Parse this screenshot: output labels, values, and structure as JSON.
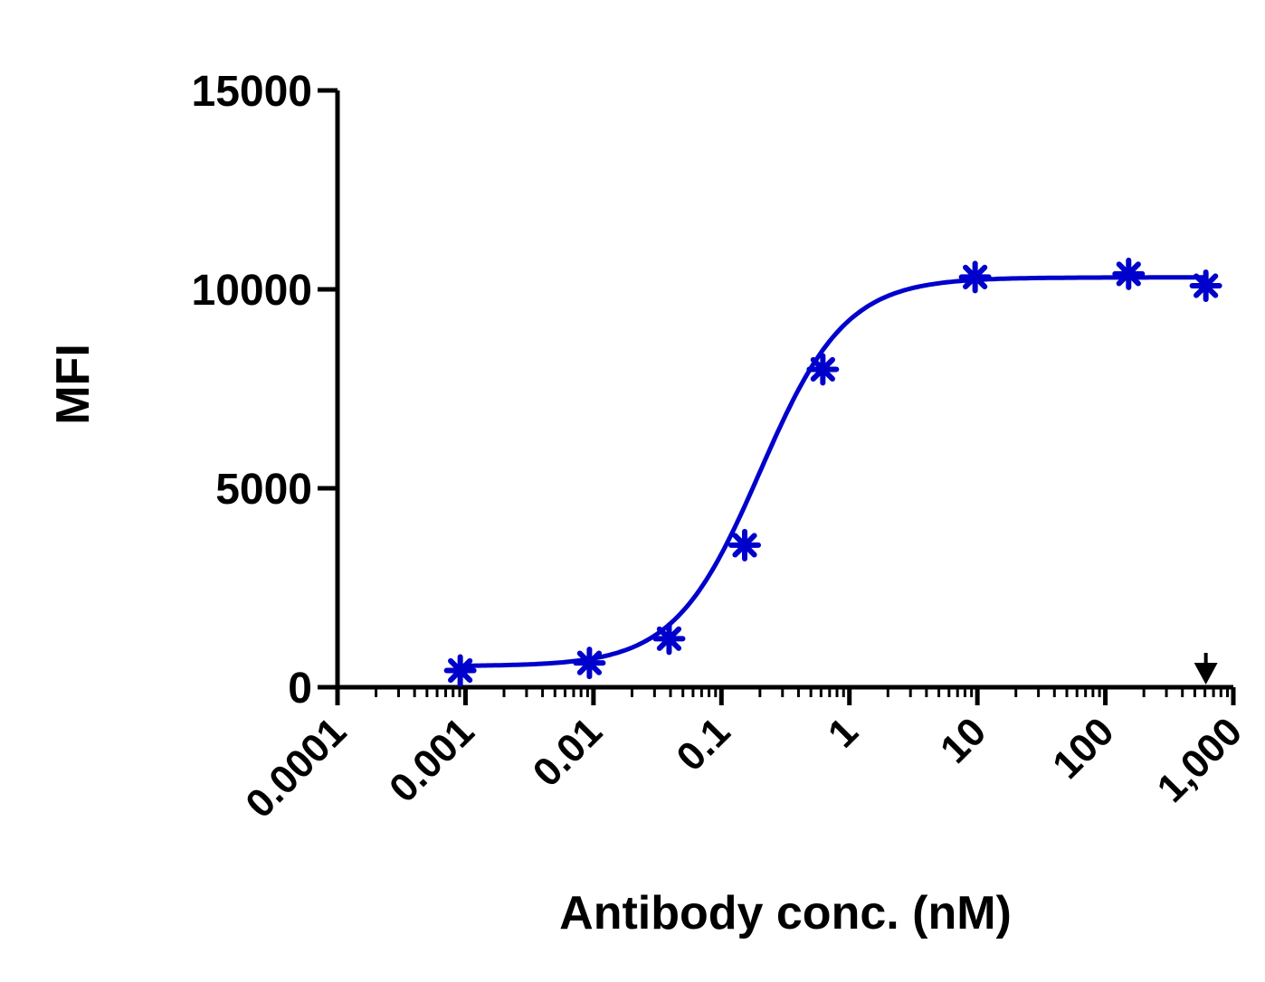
{
  "chart_data": {
    "type": "scatter",
    "title": "",
    "xlabel": "Antibody conc. (nM)",
    "ylabel": "MFI",
    "x_scale": "log10",
    "xlim": [
      0.0001,
      1000
    ],
    "ylim": [
      0,
      15000
    ],
    "x_tick_labels": [
      "0.0001",
      "0.001",
      "0.01",
      "0.1",
      "1",
      "10",
      "100",
      "1,000"
    ],
    "y_tick_values": [
      0,
      5000,
      10000,
      15000
    ],
    "y_tick_labels": [
      "0",
      "5000",
      "10000",
      "15000"
    ],
    "grid": false,
    "legend": "none",
    "marker": "asterisk",
    "series": [
      {
        "x": [
          0.00091,
          0.0093,
          0.039,
          0.152,
          0.62,
          9.6,
          152,
          610
        ],
        "y": [
          420,
          610,
          1220,
          3570,
          7990,
          10310,
          10390,
          10090
        ]
      }
    ],
    "fit_curve": {
      "model": "4PL",
      "bottom": 530,
      "top": 10300,
      "ec50": 0.2,
      "hill": 1.3
    },
    "annotations": [
      {
        "type": "arrow-down",
        "x": 610
      }
    ],
    "colors": {
      "series": "#0000cc",
      "axis": "#000000",
      "annotation": "#000000"
    }
  }
}
